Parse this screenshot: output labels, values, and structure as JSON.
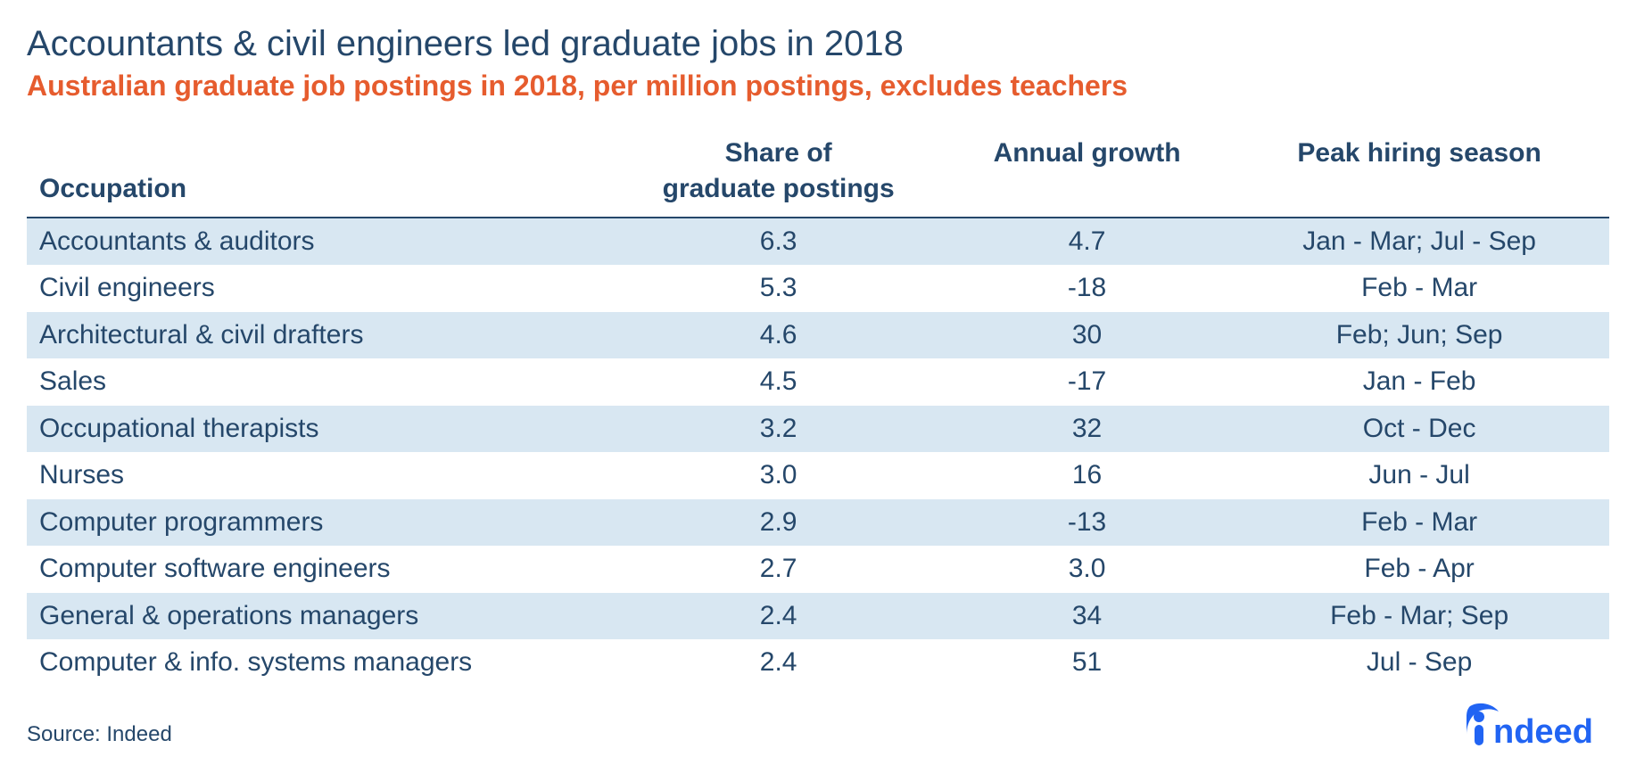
{
  "title": "Accountants & civil engineers led graduate jobs in 2018",
  "subtitle": "Australian graduate job postings in 2018, per million postings, excludes teachers",
  "source": "Source: Indeed",
  "logo_name": "indeed",
  "table": {
    "type": "table",
    "background_color": "#ffffff",
    "stripe_color": "#d8e7f2",
    "text_color": "#25476a",
    "subtitle_color": "#e65c2e",
    "header_border_color": "#25476a",
    "title_fontsize": 40,
    "subtitle_fontsize": 32,
    "header_fontsize": 30,
    "cell_fontsize": 30,
    "source_fontsize": 24,
    "columns": [
      {
        "key": "occupation",
        "label": "Occupation",
        "align": "left",
        "width": "37%"
      },
      {
        "key": "share",
        "label": "Share of graduate postings",
        "align": "center",
        "width": "21%"
      },
      {
        "key": "growth",
        "label": "Annual growth",
        "align": "center",
        "width": "18%"
      },
      {
        "key": "peak",
        "label": "Peak hiring season",
        "align": "center",
        "width": "24%"
      }
    ],
    "rows": [
      {
        "occupation": "Accountants & auditors",
        "share": "6.3",
        "growth": "4.7",
        "peak": "Jan - Mar; Jul - Sep"
      },
      {
        "occupation": "Civil engineers",
        "share": "5.3",
        "growth": "-18",
        "peak": "Feb - Mar"
      },
      {
        "occupation": "Architectural & civil drafters",
        "share": "4.6",
        "growth": "30",
        "peak": "Feb; Jun; Sep"
      },
      {
        "occupation": "Sales",
        "share": "4.5",
        "growth": "-17",
        "peak": "Jan - Feb"
      },
      {
        "occupation": "Occupational therapists",
        "share": "3.2",
        "growth": "32",
        "peak": "Oct - Dec"
      },
      {
        "occupation": "Nurses",
        "share": "3.0",
        "growth": "16",
        "peak": "Jun - Jul"
      },
      {
        "occupation": "Computer programmers",
        "share": "2.9",
        "growth": "-13",
        "peak": "Feb - Mar"
      },
      {
        "occupation": "Computer software engineers",
        "share": "2.7",
        "growth": "3.0",
        "peak": "Feb - Apr"
      },
      {
        "occupation": "General & operations managers",
        "share": "2.4",
        "growth": "34",
        "peak": "Feb - Mar; Sep"
      },
      {
        "occupation": "Computer & info. systems managers",
        "share": "2.4",
        "growth": "51",
        "peak": "Jul - Sep"
      }
    ]
  },
  "logo_color": "#2164f3"
}
